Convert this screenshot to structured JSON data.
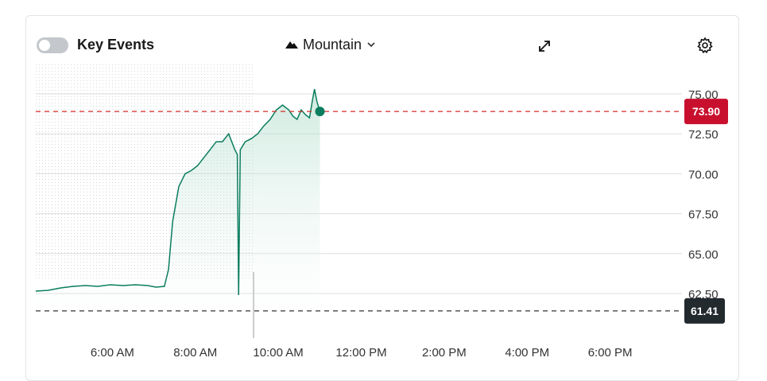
{
  "toolbar": {
    "key_events_label": "Key Events",
    "key_events_on": false,
    "chart_type_label": "Mountain",
    "chart_type_icon": "mountain-icon",
    "dropdown_icon": "chevron-down-icon",
    "expand_icon": "expand-icon",
    "settings_icon": "gear-icon"
  },
  "colors": {
    "line": "#0a7d5e",
    "area_fill": "#cfe8df",
    "current_price_line": "#d62c2c",
    "current_price_tag": "#c8102e",
    "prev_close_line": "#333333",
    "prev_close_tag": "#222a2e",
    "grid": "#dddddd"
  },
  "chart_data": {
    "type": "area",
    "title": "",
    "xlabel": "",
    "ylabel": "",
    "x_ticks": [
      "6:00 AM",
      "8:00 AM",
      "10:00 AM",
      "12:00 PM",
      "2:00 PM",
      "4:00 PM",
      "6:00 PM"
    ],
    "x_range_hours": [
      4,
      20
    ],
    "y_ticks": [
      "75.00",
      "72.50",
      "70.00",
      "67.50",
      "65.00",
      "62.50"
    ],
    "ylim": [
      61.0,
      76.0
    ],
    "grid": "horizontal",
    "current_price": 73.9,
    "current_price_label": "73.90",
    "previous_close": 61.41,
    "previous_close_label": "61.41",
    "series": [
      {
        "points": [
          [
            4.0,
            62.65
          ],
          [
            4.3,
            62.7
          ],
          [
            4.6,
            62.85
          ],
          [
            4.9,
            62.95
          ],
          [
            5.2,
            63.0
          ],
          [
            5.5,
            62.95
          ],
          [
            5.8,
            63.05
          ],
          [
            6.1,
            63.0
          ],
          [
            6.4,
            63.05
          ],
          [
            6.7,
            63.0
          ],
          [
            6.9,
            62.9
          ],
          [
            7.1,
            62.95
          ],
          [
            7.2,
            64.0
          ],
          [
            7.3,
            67.0
          ],
          [
            7.45,
            69.2
          ],
          [
            7.6,
            70.0
          ],
          [
            7.75,
            70.2
          ],
          [
            7.9,
            70.5
          ],
          [
            8.05,
            71.0
          ],
          [
            8.2,
            71.5
          ],
          [
            8.35,
            72.0
          ],
          [
            8.5,
            72.0
          ],
          [
            8.65,
            72.5
          ],
          [
            8.8,
            71.5
          ],
          [
            8.86,
            71.2
          ],
          [
            8.89,
            62.4
          ],
          [
            8.93,
            71.5
          ],
          [
            9.05,
            72.0
          ],
          [
            9.2,
            72.2
          ],
          [
            9.35,
            72.5
          ],
          [
            9.5,
            73.0
          ],
          [
            9.65,
            73.4
          ],
          [
            9.8,
            74.0
          ],
          [
            9.95,
            74.3
          ],
          [
            10.1,
            74.0
          ],
          [
            10.2,
            73.6
          ],
          [
            10.3,
            73.4
          ],
          [
            10.4,
            74.0
          ],
          [
            10.5,
            73.7
          ],
          [
            10.6,
            73.5
          ],
          [
            10.67,
            74.6
          ],
          [
            10.72,
            75.3
          ],
          [
            10.78,
            74.5
          ],
          [
            10.85,
            73.9
          ]
        ]
      }
    ]
  }
}
